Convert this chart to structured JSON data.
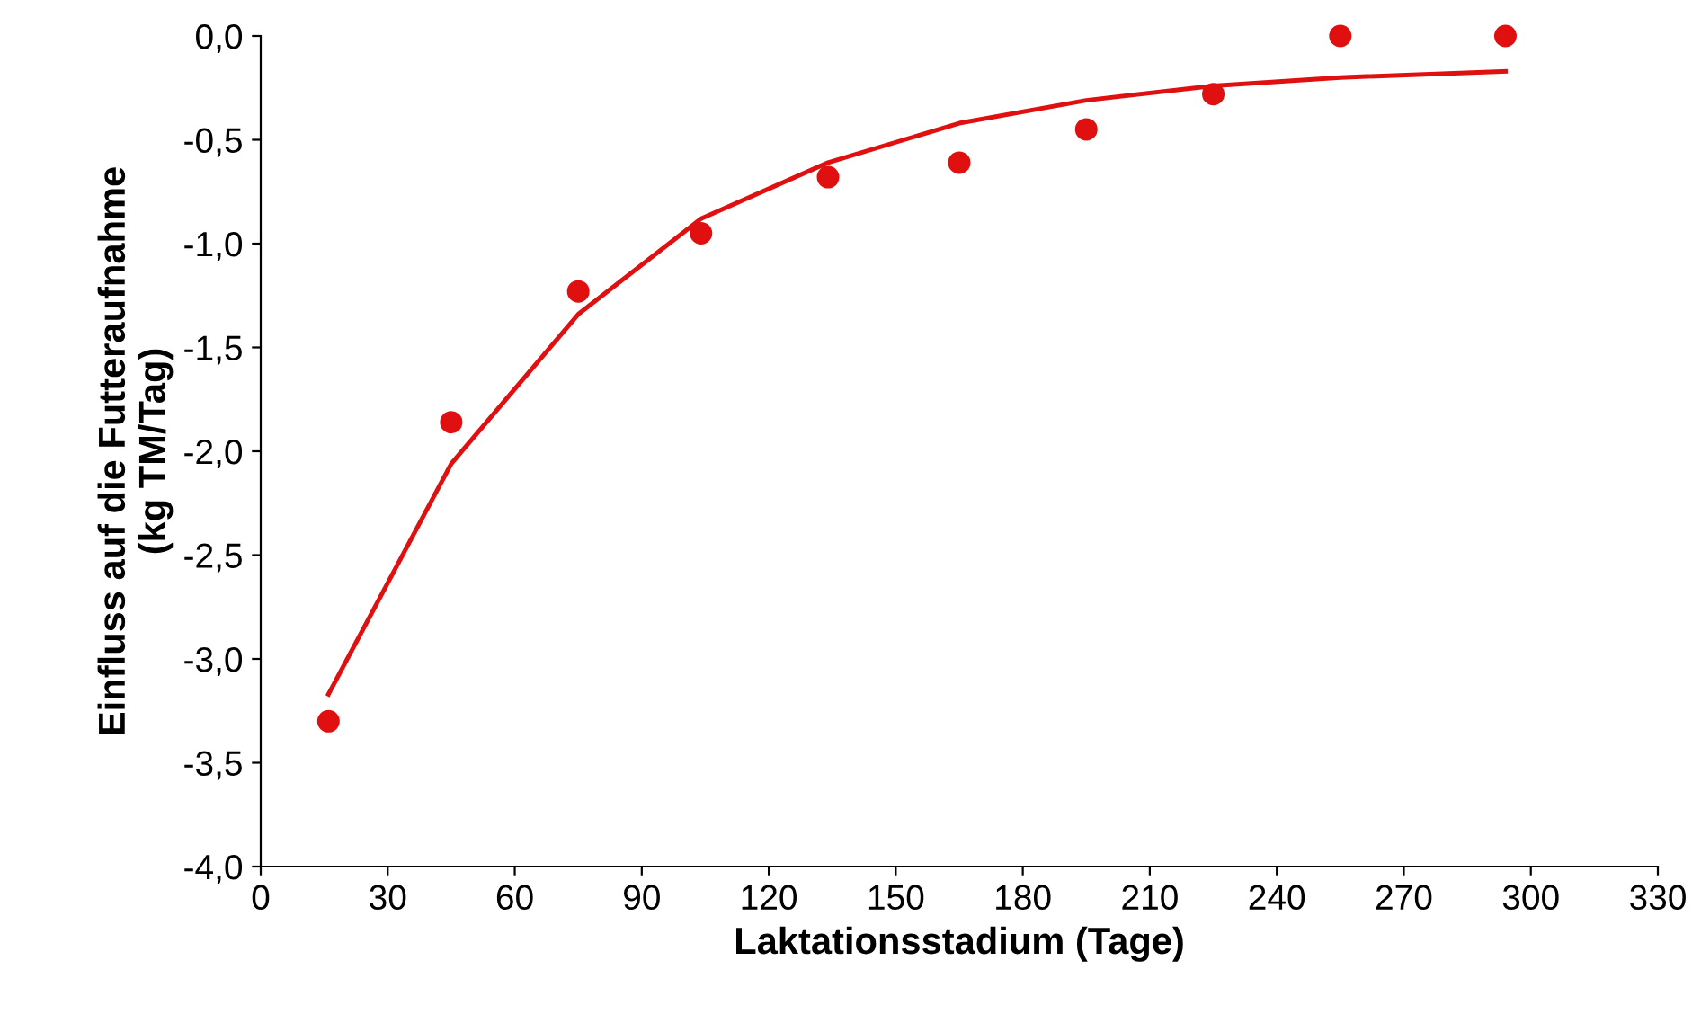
{
  "chart_data": {
    "type": "scatter",
    "xlabel": "Laktationsstadium (Tage)",
    "ylabel": "Einfluss auf die Futteraufnahme\n(kg TM/Tag)",
    "series": [
      {
        "color": "#e01010",
        "marker": "circle",
        "x": [
          16,
          45,
          75,
          104,
          134,
          165,
          195,
          225,
          255,
          294
        ],
        "values": [
          -3.3,
          -1.86,
          -1.23,
          -0.95,
          -0.68,
          -0.61,
          -0.45,
          -0.28,
          0.0,
          0.0
        ]
      },
      {
        "type": "line",
        "color": "#e01010",
        "marker": "none",
        "line_style": "solid",
        "x": [
          16,
          45,
          75,
          104,
          134,
          165,
          195,
          225,
          255,
          294
        ],
        "values": [
          -3.17,
          -2.06,
          -1.34,
          -0.88,
          -0.61,
          -0.42,
          -0.31,
          -0.24,
          -0.2,
          -0.17
        ]
      }
    ],
    "xlim": [
      0,
      330
    ],
    "xticks": [
      0,
      30,
      60,
      90,
      120,
      150,
      180,
      210,
      240,
      270,
      300,
      330
    ],
    "ylim": [
      -4,
      0
    ],
    "yticks": [
      {
        "value": -4,
        "label": "-4,0"
      },
      {
        "value": -3.5,
        "label": "-3,5"
      },
      {
        "value": -3,
        "label": "-3,0"
      },
      {
        "value": -2.5,
        "label": "-2,5"
      },
      {
        "value": -2,
        "label": "-2,0"
      },
      {
        "value": -1.5,
        "label": "-1,5"
      },
      {
        "value": -1,
        "label": "-1,0"
      },
      {
        "value": -0.5,
        "label": "-0,5"
      },
      {
        "value": 0,
        "label": "0,0"
      }
    ],
    "grid": false,
    "legend": false
  }
}
